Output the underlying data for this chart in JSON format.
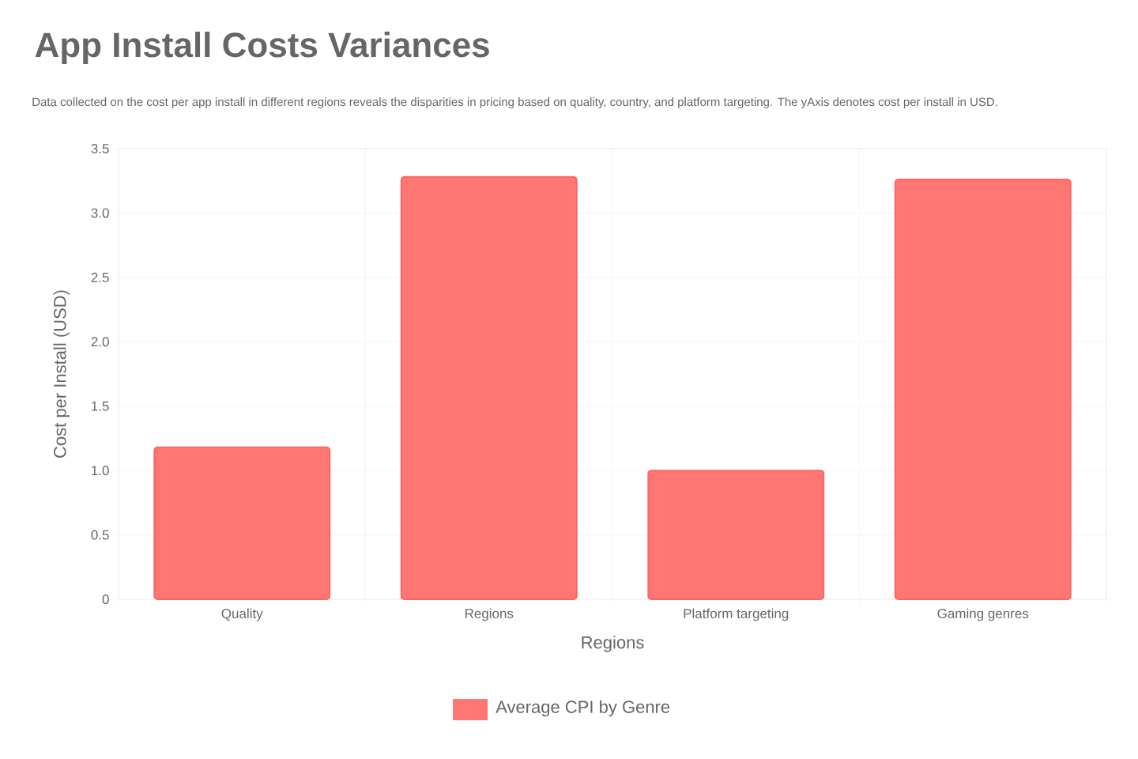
{
  "chart_data": {
    "type": "bar",
    "title": "App Install Costs Variances",
    "subtitle": "Data collected on the cost per app install in different regions reveals the disparities in pricing based on quality, country, and platform targeting. The yAxis denotes cost per install in USD.",
    "xlabel": "Regions",
    "ylabel": "Cost per Install (USD)",
    "categories": [
      "Quality",
      "Regions",
      "Platform targeting",
      "Gaming genres"
    ],
    "series": [
      {
        "name": "Average CPI by Genre",
        "color": "#ff7673",
        "values": [
          1.18,
          3.28,
          1.0,
          3.26
        ]
      }
    ],
    "ylim": [
      0,
      3.5
    ],
    "yticks": [
      0,
      0.5,
      {
        "value": 1,
        "label": "1.0"
      },
      1.5,
      {
        "value": 2,
        "label": "2.0"
      },
      2.5,
      {
        "value": 3,
        "label": "3.0"
      },
      3.5
    ],
    "grid": true,
    "legend": "bottom"
  }
}
